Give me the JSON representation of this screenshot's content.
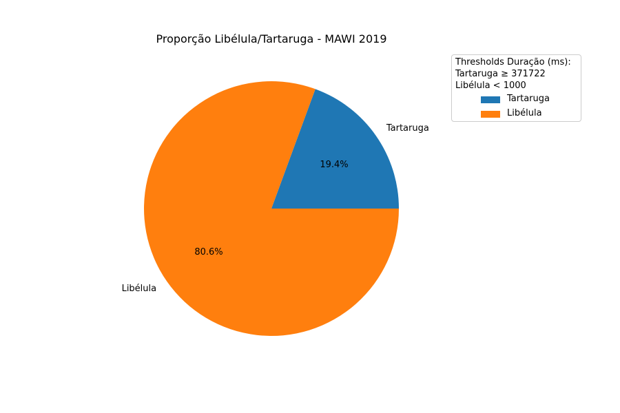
{
  "chart_data": {
    "type": "pie",
    "title": "Proporção Libélula/Tartaruga - MAWI 2019",
    "categories": [
      "Tartaruga",
      "Libélula"
    ],
    "values": [
      19.4,
      80.6
    ],
    "percent_labels": [
      "19.4%",
      "80.6%"
    ],
    "colors": [
      "#1f77b4",
      "#ff7f0e"
    ],
    "start_angle_deg": 0,
    "direction": "counterclockwise",
    "legend": {
      "placement": "top-right",
      "title_lines": [
        "Thresholds Duração (ms):",
        "Tartaruga ≥ 371722",
        "Libélula < 1000"
      ],
      "entries": [
        "Tartaruga",
        "Libélula"
      ]
    }
  }
}
